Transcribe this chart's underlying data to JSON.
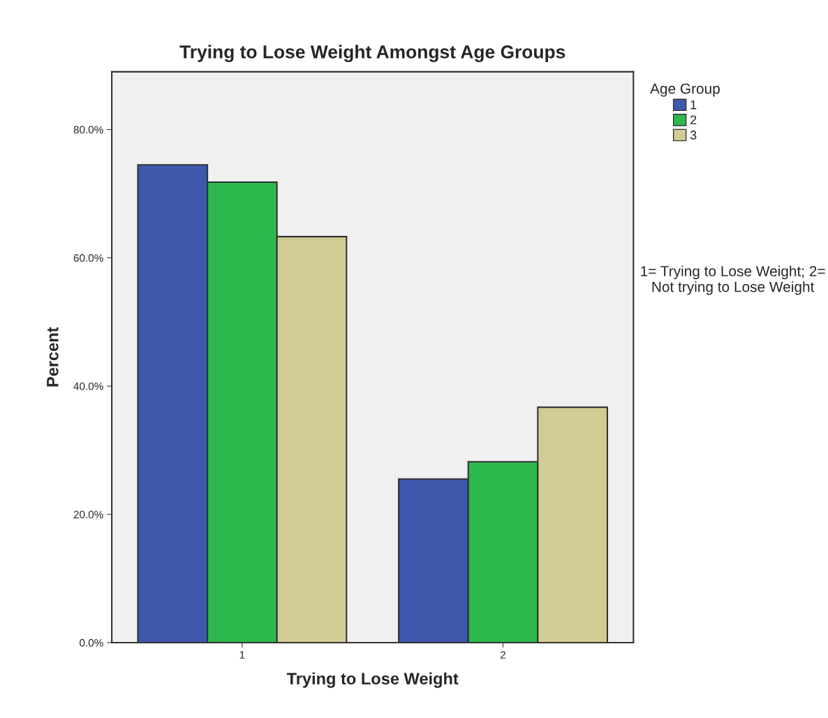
{
  "chart_data": {
    "type": "bar",
    "title": "Trying to Lose Weight Amongst Age Groups",
    "xlabel": "Trying to Lose Weight",
    "ylabel": "Percent",
    "legend_title": "Age Group",
    "categories": [
      "1",
      "2"
    ],
    "series": [
      {
        "name": "1",
        "color": "#3e58ac",
        "values": [
          74.5,
          25.5
        ]
      },
      {
        "name": "2",
        "color": "#2db84d",
        "values": [
          71.8,
          28.2
        ]
      },
      {
        "name": "3",
        "color": "#d2cc94",
        "values": [
          63.3,
          36.7
        ]
      }
    ],
    "ylim": [
      0,
      89
    ],
    "yticks": [
      {
        "value": 0,
        "label": "0.0%"
      },
      {
        "value": 20,
        "label": "20.0%"
      },
      {
        "value": 40,
        "label": "40.0%"
      },
      {
        "value": 60,
        "label": "60.0%"
      },
      {
        "value": 80,
        "label": "80.0%"
      }
    ],
    "grid": false,
    "legend": "top right",
    "annotations": [
      "1= Trying to Lose Weight; 2= Not trying to Lose Weight"
    ]
  }
}
